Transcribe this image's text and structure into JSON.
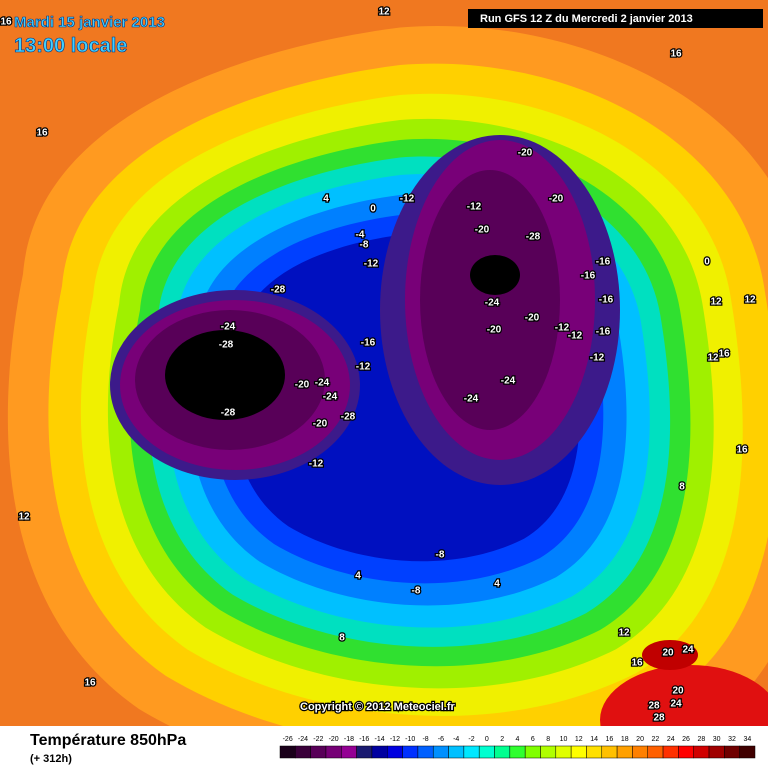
{
  "header": {
    "date": "Mardi 15 janvier 2013",
    "time": "13:00 locale",
    "run": "Run GFS 12 Z du Mercredi 2 janvier 2013"
  },
  "map": {
    "labels": [
      -28,
      -24,
      -28,
      -28,
      -20,
      -24,
      -24,
      -28,
      -20,
      -12,
      -16,
      -12,
      -20,
      -20,
      -12,
      -20,
      -28,
      -24,
      -20,
      -20,
      -24,
      -24,
      -16,
      -16,
      -16,
      -12,
      -12,
      -16,
      -12,
      -12,
      -12,
      -8,
      -4,
      0,
      0,
      4,
      12,
      16,
      16,
      12,
      12,
      12,
      16,
      16,
      12,
      8,
      4,
      4,
      -8,
      -8,
      8,
      12,
      16,
      16,
      20,
      24,
      20,
      24,
      28,
      28,
      16
    ]
  },
  "footer": {
    "title": "Température 850hPa",
    "lead": "(+ 312h)",
    "copyright": "Copyright © 2012 Meteociel.fr"
  },
  "legend": {
    "labels": [
      -26,
      -24,
      -22,
      -20,
      -18,
      -16,
      -14,
      -12,
      -10,
      -8,
      -6,
      -4,
      -2,
      0,
      2,
      4,
      6,
      8,
      10,
      12,
      14,
      16,
      18,
      20,
      22,
      24,
      26,
      28,
      30,
      32,
      34
    ],
    "colors": [
      "#1a001a",
      "#3a003a",
      "#580058",
      "#760076",
      "#940094",
      "#1a1a70",
      "#0000a0",
      "#0000e0",
      "#0030ff",
      "#0060ff",
      "#0090ff",
      "#00c0ff",
      "#00e8ff",
      "#00ffd0",
      "#00ff90",
      "#30ff30",
      "#80ff00",
      "#b0ff00",
      "#e0ff00",
      "#ffff00",
      "#ffe000",
      "#ffc000",
      "#ffa000",
      "#ff8000",
      "#ff6000",
      "#ff3000",
      "#ff0000",
      "#d00000",
      "#a00000",
      "#700000",
      "#400000"
    ]
  }
}
